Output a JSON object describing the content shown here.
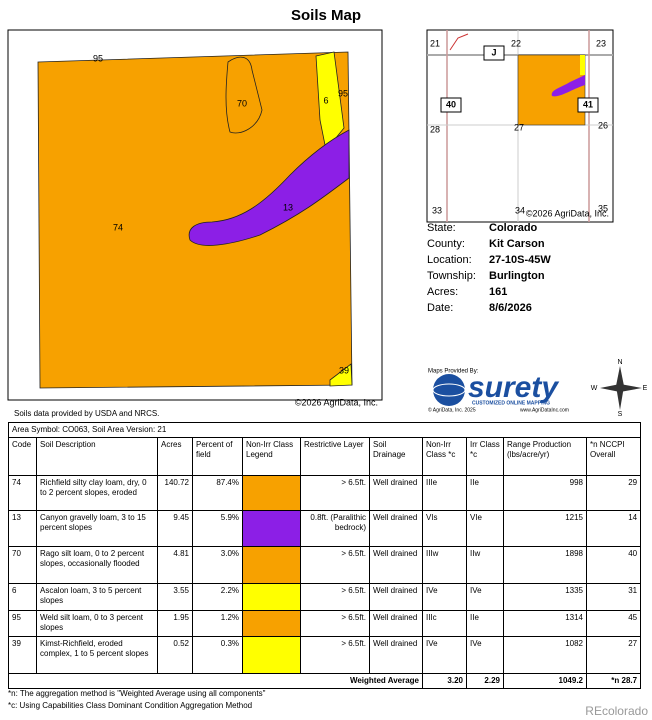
{
  "title": "Soils Map",
  "map": {
    "labels": [
      "95",
      "70",
      "6",
      "95",
      "13",
      "74",
      "39"
    ],
    "copyright": "©2026 AgriData, Inc."
  },
  "locator": {
    "labels": [
      "21",
      "22",
      "23",
      "J",
      "40",
      "41",
      "28",
      "27",
      "26",
      "33",
      "34",
      "35"
    ],
    "copyright": "©2026 AgriData, Inc."
  },
  "info": [
    {
      "label": "State:",
      "value": "Colorado"
    },
    {
      "label": "County:",
      "value": "Kit Carson"
    },
    {
      "label": "Location:",
      "value": "27-10S-45W"
    },
    {
      "label": "Township:",
      "value": "Burlington"
    },
    {
      "label": "Acres:",
      "value": "161"
    },
    {
      "label": "Date:",
      "value": "8/6/2026"
    }
  ],
  "logo": {
    "provided": "Maps Provided By:",
    "brand": "surety",
    "tagline": "CUSTOMIZED ONLINE MAPPING",
    "copyright": "© AgriData, Inc. 2025",
    "url": "www.AgriDataInc.com"
  },
  "source_note": "Soils data provided by USDA and NRCS.",
  "table": {
    "caption": "Area Symbol: CO063, Soil Area Version: 21",
    "header": [
      "Code",
      "Soil Description",
      "Acres",
      "Percent of field",
      "Non-Irr Class Legend",
      "Restrictive Layer",
      "Soil Drainage",
      "Non-Irr Class *c",
      "Irr Class *c",
      "Range Production (lbs/acre/yr)",
      "*n NCCPI Overall"
    ],
    "rows": [
      {
        "cells": [
          "74",
          "Richfield silty clay loam, dry, 0 to 2 percent slopes, eroded",
          "140.72",
          "87.4%",
          "> 6.5ft.",
          "Well drained",
          "IIIe",
          "IIe",
          "998",
          "29"
        ],
        "legend_color": "#f7a100"
      },
      {
        "cells": [
          "13",
          "Canyon gravelly loam, 3 to 15 percent slopes",
          "9.45",
          "5.9%",
          "0.8ft. (Paralithic bedrock)",
          "Well drained",
          "VIs",
          "VIe",
          "1215",
          "14"
        ],
        "legend_color": "#8c1fe6"
      },
      {
        "cells": [
          "70",
          "Rago silt loam, 0 to 2 percent slopes, occasionally flooded",
          "4.81",
          "3.0%",
          "> 6.5ft.",
          "Well drained",
          "IIIw",
          "IIw",
          "1898",
          "40"
        ],
        "legend_color": "#f7a100"
      },
      {
        "cells": [
          "6",
          "Ascalon loam, 3 to 5 percent slopes",
          "3.55",
          "2.2%",
          "> 6.5ft.",
          "Well drained",
          "IVe",
          "IVe",
          "1335",
          "31"
        ],
        "legend_color": "#ffff00"
      },
      {
        "cells": [
          "95",
          "Weld silt loam, 0 to 3 percent slopes",
          "1.95",
          "1.2%",
          "> 6.5ft.",
          "Well drained",
          "IIIc",
          "IIe",
          "1314",
          "45"
        ],
        "legend_color": "#f7a100"
      },
      {
        "cells": [
          "39",
          "Kimst-Richfield, eroded complex, 1 to 5 percent slopes",
          "0.52",
          "0.3%",
          "> 6.5ft.",
          "Well drained",
          "IVe",
          "IVe",
          "1082",
          "27"
        ],
        "legend_color": "#ffff00"
      }
    ],
    "total": {
      "label": "Weighted Average",
      "values": [
        "3.20",
        "2.29",
        "1049.2",
        "*n 28.7"
      ]
    }
  },
  "footnotes": [
    "*n: The aggregation method is \"Weighted Average using all components\"",
    "*c: Using Capabilities Class Dominant Condition Aggregation Method"
  ],
  "watermark": "REcolorado"
}
